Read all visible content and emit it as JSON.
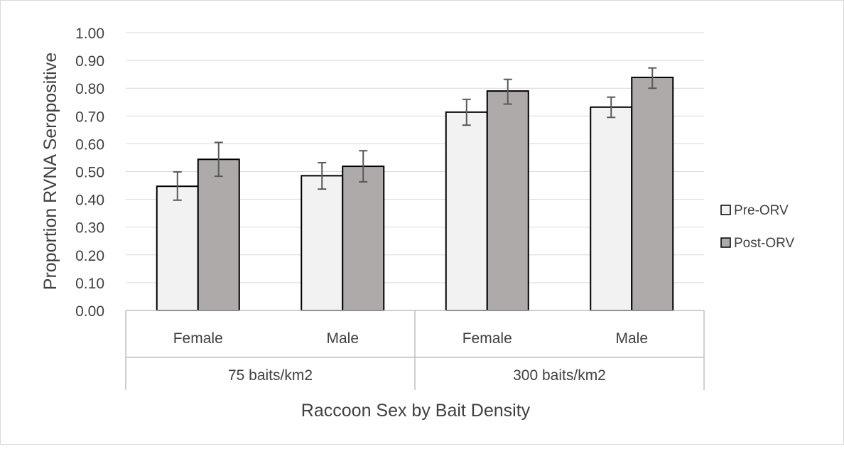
{
  "chart_data": {
    "type": "bar",
    "title": "",
    "xlabel": "Raccoon Sex by Bait Density",
    "ylabel": "Proportion RVNA Seropositive",
    "ylim": [
      0,
      1.0
    ],
    "yticks": [
      "0.00",
      "0.10",
      "0.20",
      "0.30",
      "0.40",
      "0.50",
      "0.60",
      "0.70",
      "0.80",
      "0.90",
      "1.00"
    ],
    "grid": true,
    "legend_position": "right",
    "categories": [
      "Female",
      "Male",
      "Female",
      "Male"
    ],
    "groups": [
      {
        "label": "75 baits/km2",
        "categories": [
          "Female",
          "Male"
        ]
      },
      {
        "label": "300 baits/km2",
        "categories": [
          "Female",
          "Male"
        ]
      }
    ],
    "series": [
      {
        "name": "Pre-ORV",
        "color": "#f2f2f2",
        "values": [
          0.447,
          0.485,
          0.714,
          0.732
        ],
        "error_low": [
          0.397,
          0.437,
          0.667,
          0.695
        ],
        "error_high": [
          0.499,
          0.532,
          0.76,
          0.768
        ]
      },
      {
        "name": "Post-ORV",
        "color": "#aeaaaa",
        "values": [
          0.544,
          0.519,
          0.79,
          0.839
        ],
        "error_low": [
          0.483,
          0.463,
          0.743,
          0.8
        ],
        "error_high": [
          0.605,
          0.575,
          0.832,
          0.873
        ]
      }
    ]
  }
}
